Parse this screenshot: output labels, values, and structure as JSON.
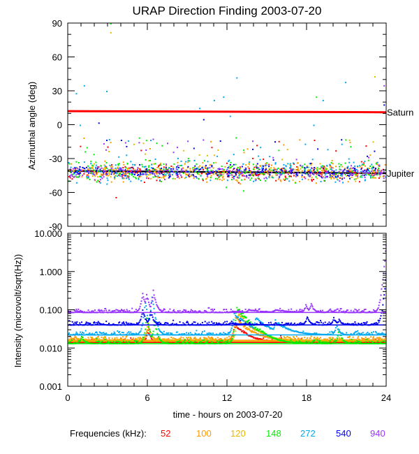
{
  "chart_data": [
    {
      "type": "scatter",
      "title": "URAP Direction Finding  2003-07-20",
      "xlabel": "",
      "ylabel": "Azimuthal angle (deg)",
      "xlim": [
        0,
        24
      ],
      "ylim": [
        -90,
        90
      ],
      "xticks": [
        0,
        6,
        12,
        18,
        24
      ],
      "yticks": [
        -90,
        -60,
        -30,
        0,
        30,
        60,
        90
      ],
      "ytick_labels": [
        "-90",
        "-60",
        "-30",
        "0",
        "30",
        "60",
        "90"
      ],
      "reference_lines": [
        {
          "name": "Saturn",
          "color": "#ff0000",
          "y_start": 12,
          "y_end": 11
        },
        {
          "name": "Jupiter",
          "color": "#000000",
          "y_start": -41,
          "y_end": -43
        }
      ],
      "series_note": "dense per-frequency point clouds clustered near -40 deg with sparse excursions to 90 deg",
      "series": [
        {
          "name": "52",
          "level": -42,
          "spread": 5
        },
        {
          "name": "100",
          "level": -41,
          "spread": 6
        },
        {
          "name": "120",
          "level": -42,
          "spread": 5
        },
        {
          "name": "148",
          "level": -41,
          "spread": 7
        },
        {
          "name": "272",
          "level": -40,
          "spread": 8
        },
        {
          "name": "540",
          "level": -41,
          "spread": 4
        },
        {
          "name": "940",
          "level": -42,
          "spread": 4
        }
      ],
      "excursions": [
        {
          "name": "148",
          "x": 3.2,
          "y": 90
        },
        {
          "name": "120",
          "x": 3.2,
          "y": 82
        },
        {
          "name": "272",
          "x": 0.6,
          "y": 28
        },
        {
          "name": "272",
          "x": 1.2,
          "y": 35
        },
        {
          "name": "272",
          "x": 2.9,
          "y": 30
        },
        {
          "name": "272",
          "x": 0.9,
          "y": 0
        },
        {
          "name": "540",
          "x": 2.3,
          "y": 2
        },
        {
          "name": "272",
          "x": 9.9,
          "y": 15
        },
        {
          "name": "272",
          "x": 11.0,
          "y": 22
        },
        {
          "name": "272",
          "x": 11.7,
          "y": 25
        },
        {
          "name": "272",
          "x": 12.2,
          "y": 8
        },
        {
          "name": "540",
          "x": 10.2,
          "y": 5
        },
        {
          "name": "272",
          "x": 12.7,
          "y": 42
        },
        {
          "name": "148",
          "x": 11.9,
          "y": -55
        },
        {
          "name": "148",
          "x": 13.2,
          "y": -58
        },
        {
          "name": "52",
          "x": 3.6,
          "y": -64
        },
        {
          "name": "272",
          "x": 18.5,
          "y": 0
        },
        {
          "name": "272",
          "x": 19.2,
          "y": 22
        },
        {
          "name": "272",
          "x": 20.9,
          "y": 38
        },
        {
          "name": "148",
          "x": 18.7,
          "y": 25
        },
        {
          "name": "120",
          "x": 23.1,
          "y": 43
        },
        {
          "name": "940",
          "x": 23.8,
          "y": 35
        },
        {
          "name": "540",
          "x": 23.8,
          "y": 18
        }
      ]
    },
    {
      "type": "line",
      "title": "",
      "xlabel": "time - hours on 2003-07-20",
      "ylabel": "Intensity (microvolt/sqrt(Hz))",
      "xscale": "linear",
      "yscale": "log",
      "xlim": [
        0,
        24
      ],
      "ylim": [
        0.001,
        10
      ],
      "xticks": [
        0,
        6,
        12,
        18,
        24
      ],
      "xtick_labels": [
        "0",
        "6",
        "12",
        "18",
        "24"
      ],
      "yticks": [
        0.001,
        0.01,
        0.1,
        1,
        10
      ],
      "ytick_labels": [
        "0.001",
        "0.010",
        "0.100",
        "1.000",
        "10.000"
      ],
      "series": [
        {
          "name": "940",
          "baseline": 0.085,
          "spikes": [
            [
              4.0,
              0.1
            ],
            [
              5.6,
              0.28
            ],
            [
              5.9,
              0.25
            ],
            [
              6.4,
              0.3
            ],
            [
              12.4,
              0.09
            ],
            [
              13.6,
              0.1
            ],
            [
              15.6,
              0.1
            ],
            [
              17.9,
              0.13
            ],
            [
              18.3,
              0.14
            ],
            [
              19.7,
              0.1
            ],
            [
              23.95,
              4.5
            ]
          ]
        },
        {
          "name": "540",
          "baseline": 0.04,
          "spikes": [
            [
              2.3,
              0.045
            ],
            [
              5.6,
              0.1
            ],
            [
              6.2,
              0.09
            ],
            [
              12.2,
              0.045
            ],
            [
              18.0,
              0.065
            ],
            [
              20.0,
              0.06
            ],
            [
              20.4,
              0.055
            ],
            [
              23.95,
              0.8
            ]
          ]
        },
        {
          "name": "272",
          "baseline": 0.022,
          "spikes": [
            [
              5.8,
              0.15
            ],
            [
              6.3,
              0.2
            ],
            [
              12.5,
              0.08
            ],
            [
              14.1,
              0.06
            ],
            [
              15.6,
              0.05
            ],
            [
              20.2,
              0.04
            ]
          ]
        },
        {
          "name": "148",
          "baseline": 0.013,
          "spikes": [
            [
              1.0,
              0.02
            ],
            [
              5.9,
              0.06
            ],
            [
              6.5,
              0.05
            ],
            [
              12.7,
              0.11
            ],
            [
              14.4,
              0.03
            ],
            [
              20.4,
              0.03
            ]
          ]
        },
        {
          "name": "120",
          "baseline": 0.015,
          "spikes": [
            [
              6.0,
              0.045
            ],
            [
              12.8,
              0.08
            ],
            [
              14.2,
              0.03
            ]
          ]
        },
        {
          "name": "100",
          "baseline": 0.016,
          "spikes": [
            [
              0.5,
              0.02
            ],
            [
              6.0,
              0.04
            ],
            [
              12.6,
              0.06
            ]
          ]
        },
        {
          "name": "52",
          "baseline": 0.014,
          "spikes": [
            [
              6.0,
              0.03
            ],
            [
              12.5,
              0.04
            ],
            [
              16.0,
              0.02
            ]
          ]
        }
      ]
    }
  ],
  "legend": {
    "label": "Frequencies (kHz):",
    "items": [
      {
        "name": "52",
        "color": "#ff0000"
      },
      {
        "name": "100",
        "color": "#ff9900"
      },
      {
        "name": "120",
        "color": "#e6b800"
      },
      {
        "name": "148",
        "color": "#00ee00"
      },
      {
        "name": "272",
        "color": "#00a8f0"
      },
      {
        "name": "540",
        "color": "#0000ee"
      },
      {
        "name": "940",
        "color": "#9933ff"
      }
    ]
  }
}
